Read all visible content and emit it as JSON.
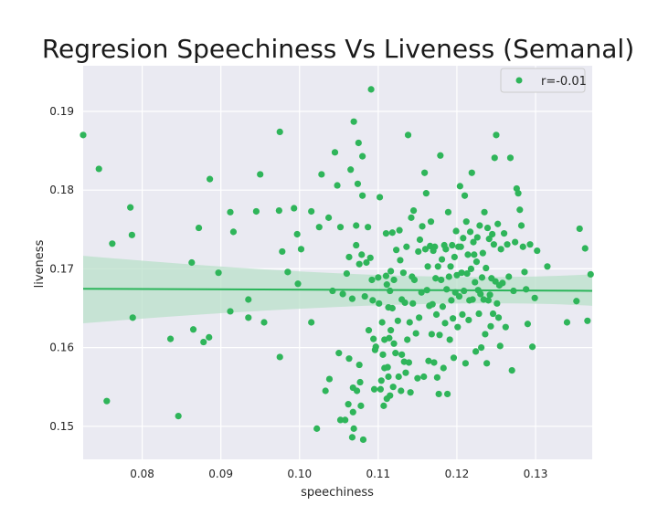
{
  "chart_data": {
    "type": "scatter",
    "title": "Regresion Speechiness Vs Liveness (Semanal)",
    "xlabel": "speechiness",
    "ylabel": "liveness",
    "xlim": [
      0.0725,
      0.1372
    ],
    "ylim": [
      0.1458,
      0.1958
    ],
    "xticks": [
      "0.08",
      "0.09",
      "0.10",
      "0.11",
      "0.12",
      "0.13"
    ],
    "yticks": [
      "0.15",
      "0.16",
      "0.17",
      "0.18",
      "0.19"
    ],
    "grid": true,
    "legend": {
      "placement": "top-right",
      "label": "r=-0.01"
    },
    "colors": {
      "point": "#2fb55a",
      "line": "#2bb55a",
      "band": "#b9e0c9",
      "plot_bg": "#eaeaf2",
      "grid": "#ffffff"
    },
    "regression": {
      "x": [
        0.0725,
        0.1372
      ],
      "y": [
        0.16746,
        0.16721
      ],
      "ci_lower": [
        0.16308,
        0.16531
      ],
      "ci_upper": [
        0.17166,
        0.16931
      ]
    },
    "points": [
      [
        0.0725,
        0.187
      ],
      [
        0.0745,
        0.1827
      ],
      [
        0.0755,
        0.1532
      ],
      [
        0.0762,
        0.1732
      ],
      [
        0.0785,
        0.1778
      ],
      [
        0.0787,
        0.1743
      ],
      [
        0.0788,
        0.1638
      ],
      [
        0.0836,
        0.1611
      ],
      [
        0.0846,
        0.1513
      ],
      [
        0.0863,
        0.1708
      ],
      [
        0.0865,
        0.1623
      ],
      [
        0.0872,
        0.1752
      ],
      [
        0.0878,
        0.1607
      ],
      [
        0.0885,
        0.1613
      ],
      [
        0.0886,
        0.1814
      ],
      [
        0.0897,
        0.1695
      ],
      [
        0.0912,
        0.1646
      ],
      [
        0.0912,
        0.1772
      ],
      [
        0.0916,
        0.1747
      ],
      [
        0.0935,
        0.1661
      ],
      [
        0.0935,
        0.1638
      ],
      [
        0.0945,
        0.1773
      ],
      [
        0.095,
        0.182
      ],
      [
        0.0955,
        0.1632
      ],
      [
        0.0974,
        0.1774
      ],
      [
        0.0975,
        0.1874
      ],
      [
        0.0975,
        0.1588
      ],
      [
        0.0978,
        0.1722
      ],
      [
        0.0985,
        0.1696
      ],
      [
        0.0993,
        0.1777
      ],
      [
        0.0997,
        0.1744
      ],
      [
        0.0998,
        0.1681
      ],
      [
        0.1002,
        0.1725
      ],
      [
        0.1015,
        0.1632
      ],
      [
        0.1015,
        0.1773
      ],
      [
        0.1022,
        0.1497
      ],
      [
        0.1025,
        0.1753
      ],
      [
        0.1028,
        0.182
      ],
      [
        0.1033,
        0.1545
      ],
      [
        0.1037,
        0.1765
      ],
      [
        0.1038,
        0.156
      ],
      [
        0.1042,
        0.1672
      ],
      [
        0.1045,
        0.1848
      ],
      [
        0.1048,
        0.1806
      ],
      [
        0.105,
        0.1593
      ],
      [
        0.1052,
        0.1753
      ],
      [
        0.1052,
        0.1508
      ],
      [
        0.1055,
        0.1668
      ],
      [
        0.1058,
        0.1508
      ],
      [
        0.106,
        0.1694
      ],
      [
        0.1062,
        0.1528
      ],
      [
        0.1063,
        0.1715
      ],
      [
        0.1063,
        0.1586
      ],
      [
        0.1065,
        0.1826
      ],
      [
        0.1067,
        0.1662
      ],
      [
        0.1067,
        0.1486
      ],
      [
        0.1068,
        0.1518
      ],
      [
        0.1068,
        0.1549
      ],
      [
        0.1069,
        0.1497
      ],
      [
        0.1069,
        0.1887
      ],
      [
        0.1072,
        0.1755
      ],
      [
        0.1072,
        0.173
      ],
      [
        0.1073,
        0.1545
      ],
      [
        0.1074,
        0.1808
      ],
      [
        0.1075,
        0.186
      ],
      [
        0.1076,
        0.1706
      ],
      [
        0.1076,
        0.1578
      ],
      [
        0.1077,
        0.1556
      ],
      [
        0.1078,
        0.1526
      ],
      [
        0.1079,
        0.1718
      ],
      [
        0.108,
        0.1793
      ],
      [
        0.108,
        0.1843
      ],
      [
        0.1081,
        0.1483
      ],
      [
        0.1083,
        0.1665
      ],
      [
        0.1085,
        0.1708
      ],
      [
        0.1087,
        0.1753
      ],
      [
        0.1088,
        0.1622
      ],
      [
        0.109,
        0.1714
      ],
      [
        0.1091,
        0.1928
      ],
      [
        0.1092,
        0.1686
      ],
      [
        0.1093,
        0.166
      ],
      [
        0.1094,
        0.1611
      ],
      [
        0.1095,
        0.1547
      ],
      [
        0.1096,
        0.1597
      ],
      [
        0.1097,
        0.1601
      ],
      [
        0.11,
        0.1689
      ],
      [
        0.1101,
        0.1656
      ],
      [
        0.1102,
        0.1791
      ],
      [
        0.1103,
        0.1547
      ],
      [
        0.1104,
        0.1558
      ],
      [
        0.1105,
        0.1632
      ],
      [
        0.1106,
        0.1591
      ],
      [
        0.1107,
        0.1526
      ],
      [
        0.1108,
        0.1574
      ],
      [
        0.1108,
        0.161
      ],
      [
        0.111,
        0.1745
      ],
      [
        0.111,
        0.1691
      ],
      [
        0.1111,
        0.168
      ],
      [
        0.1111,
        0.1535
      ],
      [
        0.1112,
        0.1575
      ],
      [
        0.1113,
        0.1651
      ],
      [
        0.1113,
        0.1563
      ],
      [
        0.1114,
        0.1612
      ],
      [
        0.1115,
        0.1672
      ],
      [
        0.1115,
        0.1539
      ],
      [
        0.1116,
        0.1697
      ],
      [
        0.1116,
        0.1622
      ],
      [
        0.1118,
        0.165
      ],
      [
        0.1118,
        0.1746
      ],
      [
        0.1119,
        0.155
      ],
      [
        0.112,
        0.1605
      ],
      [
        0.112,
        0.1686
      ],
      [
        0.1122,
        0.1593
      ],
      [
        0.1123,
        0.1724
      ],
      [
        0.1125,
        0.1634
      ],
      [
        0.1126,
        0.1563
      ],
      [
        0.1127,
        0.1749
      ],
      [
        0.1128,
        0.1711
      ],
      [
        0.1129,
        0.1545
      ],
      [
        0.113,
        0.1591
      ],
      [
        0.113,
        0.1661
      ],
      [
        0.1132,
        0.1695
      ],
      [
        0.1133,
        0.1582
      ],
      [
        0.1134,
        0.1657
      ],
      [
        0.1135,
        0.1568
      ],
      [
        0.1136,
        0.1728
      ],
      [
        0.1137,
        0.161
      ],
      [
        0.1138,
        0.187
      ],
      [
        0.1139,
        0.1581
      ],
      [
        0.114,
        0.1632
      ],
      [
        0.1141,
        0.1543
      ],
      [
        0.1142,
        0.1765
      ],
      [
        0.1143,
        0.169
      ],
      [
        0.1144,
        0.1656
      ],
      [
        0.1145,
        0.1774
      ],
      [
        0.1146,
        0.1686
      ],
      [
        0.1148,
        0.1618
      ],
      [
        0.115,
        0.1561
      ],
      [
        0.1151,
        0.1722
      ],
      [
        0.1152,
        0.1638
      ],
      [
        0.1153,
        0.1737
      ],
      [
        0.1155,
        0.167
      ],
      [
        0.1156,
        0.1754
      ],
      [
        0.1158,
        0.1563
      ],
      [
        0.1159,
        0.1822
      ],
      [
        0.116,
        0.1725
      ],
      [
        0.1161,
        0.1796
      ],
      [
        0.1162,
        0.1673
      ],
      [
        0.1163,
        0.1703
      ],
      [
        0.1164,
        0.1583
      ],
      [
        0.1165,
        0.1653
      ],
      [
        0.1166,
        0.1729
      ],
      [
        0.1167,
        0.176
      ],
      [
        0.1168,
        0.1617
      ],
      [
        0.1169,
        0.1655
      ],
      [
        0.117,
        0.1723
      ],
      [
        0.1171,
        0.1581
      ],
      [
        0.1172,
        0.1728
      ],
      [
        0.1173,
        0.1688
      ],
      [
        0.1174,
        0.1642
      ],
      [
        0.1175,
        0.1562
      ],
      [
        0.1176,
        0.1703
      ],
      [
        0.1177,
        0.1541
      ],
      [
        0.1178,
        0.1616
      ],
      [
        0.1179,
        0.1844
      ],
      [
        0.118,
        0.1686
      ],
      [
        0.1181,
        0.1712
      ],
      [
        0.1182,
        0.1652
      ],
      [
        0.1183,
        0.1574
      ],
      [
        0.1184,
        0.173
      ],
      [
        0.1185,
        0.1631
      ],
      [
        0.1186,
        0.1725
      ],
      [
        0.1187,
        0.1674
      ],
      [
        0.1188,
        0.1541
      ],
      [
        0.1189,
        0.1772
      ],
      [
        0.119,
        0.169
      ],
      [
        0.1191,
        0.161
      ],
      [
        0.1192,
        0.1703
      ],
      [
        0.1193,
        0.166
      ],
      [
        0.1194,
        0.173
      ],
      [
        0.1195,
        0.1637
      ],
      [
        0.1196,
        0.1587
      ],
      [
        0.1197,
        0.1715
      ],
      [
        0.1198,
        0.167
      ],
      [
        0.1199,
        0.1748
      ],
      [
        0.12,
        0.1692
      ],
      [
        0.1201,
        0.1626
      ],
      [
        0.1202,
        0.1728
      ],
      [
        0.1203,
        0.1665
      ],
      [
        0.1204,
        0.1805
      ],
      [
        0.1205,
        0.1728
      ],
      [
        0.1206,
        0.1695
      ],
      [
        0.1207,
        0.1642
      ],
      [
        0.1208,
        0.1739
      ],
      [
        0.1209,
        0.1672
      ],
      [
        0.121,
        0.1793
      ],
      [
        0.1211,
        0.158
      ],
      [
        0.1212,
        0.176
      ],
      [
        0.1213,
        0.1694
      ],
      [
        0.1214,
        0.1718
      ],
      [
        0.1215,
        0.1635
      ],
      [
        0.1216,
        0.166
      ],
      [
        0.1217,
        0.1747
      ],
      [
        0.1218,
        0.17
      ],
      [
        0.1219,
        0.1822
      ],
      [
        0.122,
        0.1661
      ],
      [
        0.1221,
        0.1734
      ],
      [
        0.1222,
        0.1718
      ],
      [
        0.1223,
        0.1683
      ],
      [
        0.1224,
        0.1595
      ],
      [
        0.1225,
        0.1709
      ],
      [
        0.1226,
        0.174
      ],
      [
        0.1227,
        0.1673
      ],
      [
        0.1228,
        0.1643
      ],
      [
        0.1229,
        0.1755
      ],
      [
        0.123,
        0.1668
      ],
      [
        0.1231,
        0.16
      ],
      [
        0.1232,
        0.1689
      ],
      [
        0.1233,
        0.172
      ],
      [
        0.1234,
        0.1661
      ],
      [
        0.1235,
        0.1772
      ],
      [
        0.1236,
        0.1617
      ],
      [
        0.1237,
        0.1701
      ],
      [
        0.1238,
        0.158
      ],
      [
        0.1239,
        0.1752
      ],
      [
        0.124,
        0.166
      ],
      [
        0.1241,
        0.1738
      ],
      [
        0.1242,
        0.1667
      ],
      [
        0.1243,
        0.1627
      ],
      [
        0.1244,
        0.1688
      ],
      [
        0.1245,
        0.1744
      ],
      [
        0.1246,
        0.1643
      ],
      [
        0.1247,
        0.1731
      ],
      [
        0.1248,
        0.1841
      ],
      [
        0.1249,
        0.1684
      ],
      [
        0.125,
        0.187
      ],
      [
        0.1251,
        0.1656
      ],
      [
        0.1252,
        0.1757
      ],
      [
        0.1253,
        0.1638
      ],
      [
        0.1254,
        0.1679
      ],
      [
        0.1255,
        0.1602
      ],
      [
        0.1256,
        0.1725
      ],
      [
        0.1258,
        0.1682
      ],
      [
        0.126,
        0.1745
      ],
      [
        0.1262,
        0.1626
      ],
      [
        0.1264,
        0.1731
      ],
      [
        0.1266,
        0.169
      ],
      [
        0.1268,
        0.1841
      ],
      [
        0.127,
        0.1571
      ],
      [
        0.1272,
        0.1672
      ],
      [
        0.1274,
        0.1734
      ],
      [
        0.1276,
        0.1802
      ],
      [
        0.1278,
        0.1796
      ],
      [
        0.128,
        0.1775
      ],
      [
        0.1282,
        0.1755
      ],
      [
        0.1284,
        0.1728
      ],
      [
        0.1286,
        0.1696
      ],
      [
        0.1288,
        0.1674
      ],
      [
        0.129,
        0.163
      ],
      [
        0.1293,
        0.1731
      ],
      [
        0.1296,
        0.1601
      ],
      [
        0.1299,
        0.1663
      ],
      [
        0.1302,
        0.1723
      ],
      [
        0.1315,
        0.1703
      ],
      [
        0.134,
        0.1632
      ],
      [
        0.1352,
        0.1659
      ],
      [
        0.1356,
        0.1751
      ],
      [
        0.1363,
        0.1726
      ],
      [
        0.1366,
        0.1634
      ],
      [
        0.137,
        0.1693
      ]
    ]
  }
}
